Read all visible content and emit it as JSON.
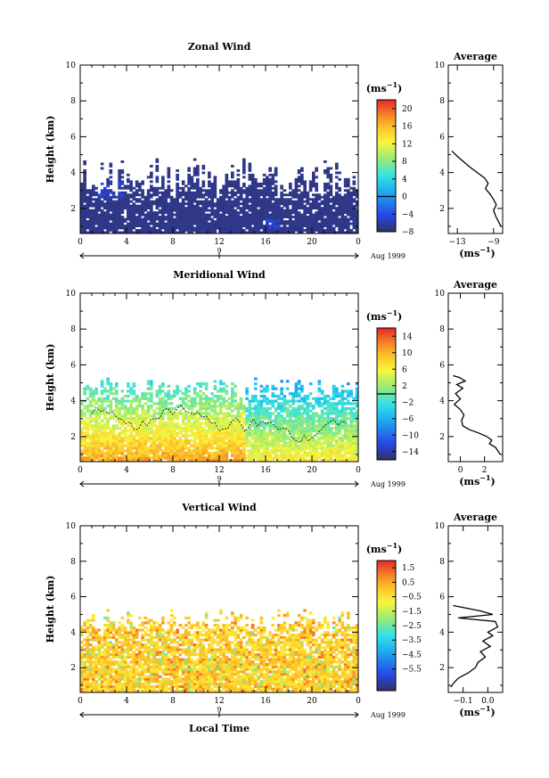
{
  "chart_data": [
    {
      "type": "heatmap",
      "name": "zonal",
      "title": "Zonal Wind",
      "ylabel": "Height (km)",
      "xticks": [
        "0",
        "4",
        "8",
        "12",
        "16",
        "20",
        "0"
      ],
      "yticks": [
        "2",
        "4",
        "6",
        "8",
        "10"
      ],
      "xlim": [
        0,
        24
      ],
      "ylim": [
        0.6,
        10
      ],
      "date_label": "9",
      "month_label": "Aug 1999",
      "colorbar": {
        "unit": "(ms",
        "unit_sup": "−1",
        "unit_close": ")",
        "min": -8,
        "max": 22,
        "ticks": [
          "20",
          "16",
          "12",
          "8",
          "4",
          "0",
          "−4",
          "−8"
        ],
        "tick_values": [
          20,
          16,
          12,
          8,
          4,
          0,
          -4,
          -8
        ],
        "zero_line": 0
      },
      "cells": {
        "dominant_value": -7,
        "coverage_top_km": 4.8,
        "blue_pockets": [
          {
            "t": [
              1.5,
              3.5
            ],
            "z": [
              2.5,
              3.6
            ]
          },
          {
            "t": [
              16,
              17
            ],
            "z": [
              0.8,
              1.4
            ]
          }
        ]
      },
      "profile": {
        "title": "Average",
        "xticks": [
          "−13",
          "−9"
        ],
        "xlim": [
          -14,
          -8
        ],
        "xlabel": "(ms",
        "xlabel_sup": "−1",
        "xlabel_close": ")",
        "yticks": [
          "2",
          "4",
          "6",
          "8",
          "10"
        ],
        "points": [
          [
            -13.6,
            5.2
          ],
          [
            -13.0,
            4.9
          ],
          [
            -12.3,
            4.6
          ],
          [
            -11.6,
            4.3
          ],
          [
            -10.8,
            4.0
          ],
          [
            -10.0,
            3.7
          ],
          [
            -9.6,
            3.4
          ],
          [
            -9.9,
            3.1
          ],
          [
            -9.4,
            2.8
          ],
          [
            -9.0,
            2.5
          ],
          [
            -8.7,
            2.2
          ],
          [
            -9.0,
            1.9
          ],
          [
            -8.8,
            1.6
          ],
          [
            -8.5,
            1.3
          ],
          [
            -8.2,
            1.0
          ]
        ]
      }
    },
    {
      "type": "heatmap",
      "name": "meridional",
      "title": "Meridional Wind",
      "ylabel": "Height (km)",
      "xticks": [
        "0",
        "4",
        "8",
        "12",
        "16",
        "20",
        "0"
      ],
      "yticks": [
        "2",
        "4",
        "6",
        "8",
        "10"
      ],
      "xlim": [
        0,
        24
      ],
      "ylim": [
        0.6,
        10
      ],
      "date_label": "9",
      "month_label": "Aug 1999",
      "colorbar": {
        "unit": "(ms",
        "unit_sup": "−1",
        "unit_close": ")",
        "min": -16,
        "max": 16,
        "ticks": [
          "14",
          "10",
          "6",
          "2",
          "−2",
          "−6",
          "−10",
          "−14"
        ],
        "tick_values": [
          14,
          10,
          6,
          2,
          -2,
          -6,
          -10,
          -14
        ],
        "zero_line": 0
      },
      "cells": {
        "coverage_top_km": 5.3,
        "zero_contour": true
      },
      "profile": {
        "title": "Average",
        "xticks": [
          "0",
          "2"
        ],
        "xlim": [
          -1,
          3.5
        ],
        "xlabel": "(ms",
        "xlabel_sup": "−1",
        "xlabel_close": ")",
        "yticks": [
          "2",
          "4",
          "6",
          "8",
          "10"
        ],
        "points": [
          [
            -0.6,
            5.4
          ],
          [
            -0.1,
            5.3
          ],
          [
            0.4,
            5.1
          ],
          [
            -0.3,
            4.9
          ],
          [
            0.2,
            4.7
          ],
          [
            -0.4,
            4.4
          ],
          [
            0.0,
            4.1
          ],
          [
            -0.5,
            3.8
          ],
          [
            0.0,
            3.5
          ],
          [
            0.3,
            3.2
          ],
          [
            0.1,
            2.9
          ],
          [
            0.2,
            2.6
          ],
          [
            0.7,
            2.4
          ],
          [
            1.5,
            2.2
          ],
          [
            2.2,
            2.0
          ],
          [
            2.6,
            1.8
          ],
          [
            2.4,
            1.6
          ],
          [
            2.9,
            1.4
          ],
          [
            3.1,
            1.2
          ],
          [
            3.3,
            1.0
          ]
        ]
      }
    },
    {
      "type": "heatmap",
      "name": "vertical",
      "title": "Vertical Wind",
      "ylabel": "Height (km)",
      "xlabel": "Local Time",
      "xticks": [
        "0",
        "4",
        "8",
        "12",
        "16",
        "20",
        "0"
      ],
      "yticks": [
        "2",
        "4",
        "6",
        "8",
        "10"
      ],
      "xlim": [
        0,
        24
      ],
      "ylim": [
        0.6,
        10
      ],
      "date_label": "9",
      "month_label": "Aug 1999",
      "colorbar": {
        "unit": "(ms",
        "unit_sup": "−1",
        "unit_close": ")",
        "min": -7,
        "max": 2,
        "ticks": [
          "1.5",
          "0.5",
          "−0.5",
          "−1.5",
          "−2.5",
          "−3.5",
          "−4.5",
          "−5.5"
        ],
        "tick_values": [
          1.5,
          0.5,
          -0.5,
          -1.5,
          -2.5,
          -3.5,
          -4.5,
          -5.5
        ]
      },
      "cells": {
        "coverage_top_km": 5.3
      },
      "profile": {
        "title": "Average",
        "xticks": [
          "−0.1",
          "0.0"
        ],
        "xlim": [
          -0.16,
          0.06
        ],
        "xlabel": "(ms",
        "xlabel_sup": "−1",
        "xlabel_close": ")",
        "yticks": [
          "2",
          "4",
          "6",
          "8",
          "10"
        ],
        "points": [
          [
            -0.14,
            5.5
          ],
          [
            -0.03,
            5.2
          ],
          [
            0.02,
            5.0
          ],
          [
            -0.12,
            4.8
          ],
          [
            0.03,
            4.6
          ],
          [
            0.04,
            4.3
          ],
          [
            0.0,
            4.0
          ],
          [
            0.02,
            3.8
          ],
          [
            -0.02,
            3.5
          ],
          [
            0.01,
            3.2
          ],
          [
            -0.03,
            2.9
          ],
          [
            -0.01,
            2.6
          ],
          [
            -0.04,
            2.3
          ],
          [
            -0.05,
            2.0
          ],
          [
            -0.08,
            1.7
          ],
          [
            -0.12,
            1.4
          ],
          [
            -0.14,
            1.1
          ],
          [
            -0.15,
            0.9
          ]
        ]
      }
    }
  ]
}
